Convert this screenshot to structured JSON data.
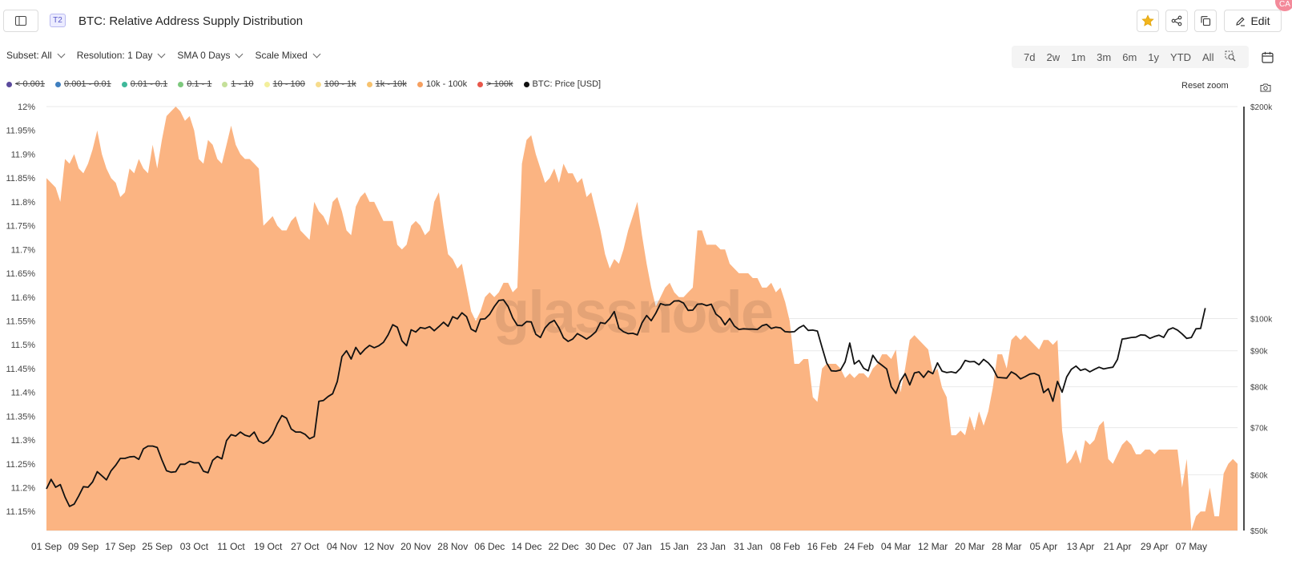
{
  "header": {
    "tier_badge": "T2",
    "title": "BTC: Relative Address Supply Distribution",
    "edit_label": "Edit",
    "avatar_initials": "CA"
  },
  "filters": [
    {
      "label": "Subset: All"
    },
    {
      "label": "Resolution: 1 Day"
    },
    {
      "label": "SMA 0 Days"
    },
    {
      "label": "Scale Mixed"
    }
  ],
  "ranges": [
    "7d",
    "2w",
    "1m",
    "3m",
    "6m",
    "1y",
    "YTD",
    "All"
  ],
  "reset_zoom": "Reset zoom",
  "legend": [
    {
      "label": "< 0.001",
      "color": "#5b4a9c",
      "active": false
    },
    {
      "label": "0.001 - 0.01",
      "color": "#3f7fbf",
      "active": false
    },
    {
      "label": "0.01 - 0.1",
      "color": "#3fb89a",
      "active": false
    },
    {
      "label": "0.1 - 1",
      "color": "#7dc87d",
      "active": false
    },
    {
      "label": "1 - 10",
      "color": "#c5e09a",
      "active": false
    },
    {
      "label": "10 - 100",
      "color": "#f3ef9c",
      "active": false
    },
    {
      "label": "100 - 1k",
      "color": "#f7dc8c",
      "active": false
    },
    {
      "label": "1k - 10k",
      "color": "#f7c26e",
      "active": false
    },
    {
      "label": "10k - 100k",
      "color": "#f6a060",
      "active": true
    },
    {
      "label": "> 100k",
      "color": "#e8574a",
      "active": false
    },
    {
      "label": "BTC: Price [USD]",
      "color": "#111111",
      "active": true
    }
  ],
  "watermark": "glassnode",
  "chart_data": {
    "type": "area",
    "title": "BTC: Relative Address Supply Distribution",
    "x_labels": [
      "01 Sep",
      "09 Sep",
      "17 Sep",
      "25 Sep",
      "03 Oct",
      "11 Oct",
      "19 Oct",
      "27 Oct",
      "04 Nov",
      "12 Nov",
      "20 Nov",
      "28 Nov",
      "06 Dec",
      "14 Dec",
      "22 Dec",
      "30 Dec",
      "07 Jan",
      "15 Jan",
      "23 Jan",
      "31 Jan",
      "08 Feb",
      "16 Feb",
      "24 Feb",
      "04 Mar",
      "12 Mar",
      "20 Mar",
      "28 Mar",
      "05 Apr",
      "13 Apr",
      "21 Apr",
      "29 Apr",
      "07 May"
    ],
    "y_left": {
      "ticks": [
        "12%",
        "11.95%",
        "11.9%",
        "11.85%",
        "11.8%",
        "11.75%",
        "11.7%",
        "11.65%",
        "11.6%",
        "11.55%",
        "11.5%",
        "11.45%",
        "11.4%",
        "11.35%",
        "11.3%",
        "11.25%",
        "11.2%",
        "11.15%"
      ],
      "range": [
        11.11,
        12.0
      ]
    },
    "y_right": {
      "ticks": [
        "$200k",
        "$100k",
        "$90k",
        "$80k",
        "$70k",
        "$60k",
        "$50k"
      ],
      "tick_values": [
        200000,
        100000,
        90000,
        80000,
        70000,
        60000,
        50000
      ],
      "scale": "log",
      "range": [
        50000,
        200000
      ]
    },
    "series": [
      {
        "name": "10k - 100k",
        "color": "#fbb482",
        "unit": "%",
        "values": [
          11.85,
          11.84,
          11.83,
          11.8,
          11.89,
          11.88,
          11.9,
          11.87,
          11.86,
          11.88,
          11.91,
          11.95,
          11.9,
          11.87,
          11.85,
          11.84,
          11.81,
          11.82,
          11.87,
          11.86,
          11.89,
          11.87,
          11.86,
          11.92,
          11.87,
          11.93,
          11.98,
          11.99,
          12.0,
          11.99,
          11.97,
          11.98,
          11.95,
          11.89,
          11.88,
          11.93,
          11.92,
          11.89,
          11.88,
          11.92,
          11.96,
          11.92,
          11.9,
          11.89,
          11.89,
          11.88,
          11.87,
          11.75,
          11.76,
          11.77,
          11.75,
          11.74,
          11.74,
          11.76,
          11.77,
          11.74,
          11.73,
          11.72,
          11.8,
          11.78,
          11.77,
          11.75,
          11.8,
          11.81,
          11.78,
          11.74,
          11.73,
          11.79,
          11.81,
          11.82,
          11.8,
          11.8,
          11.78,
          11.76,
          11.76,
          11.76,
          11.71,
          11.7,
          11.71,
          11.75,
          11.76,
          11.75,
          11.73,
          11.74,
          11.8,
          11.82,
          11.75,
          11.69,
          11.68,
          11.66,
          11.67,
          11.62,
          11.57,
          11.55,
          11.57,
          11.6,
          11.61,
          11.6,
          11.61,
          11.63,
          11.63,
          11.61,
          11.62,
          11.88,
          11.93,
          11.94,
          11.9,
          11.87,
          11.84,
          11.85,
          11.87,
          11.84,
          11.88,
          11.86,
          11.86,
          11.84,
          11.85,
          11.81,
          11.82,
          11.78,
          11.74,
          11.69,
          11.66,
          11.68,
          11.67,
          11.7,
          11.74,
          11.77,
          11.8,
          11.73,
          11.67,
          11.62,
          11.58,
          11.6,
          11.62,
          11.63,
          11.61,
          11.6,
          11.6,
          11.61,
          11.62,
          11.74,
          11.74,
          11.71,
          11.71,
          11.71,
          11.7,
          11.7,
          11.67,
          11.66,
          11.65,
          11.65,
          11.65,
          11.64,
          11.64,
          11.62,
          11.62,
          11.63,
          11.61,
          11.62,
          11.59,
          11.55,
          11.46,
          11.46,
          11.47,
          11.47,
          11.39,
          11.38,
          11.45,
          11.46,
          11.46,
          11.46,
          11.45,
          11.43,
          11.44,
          11.43,
          11.44,
          11.44,
          11.43,
          11.45,
          11.46,
          11.48,
          11.48,
          11.47,
          11.49,
          11.4,
          11.45,
          11.51,
          11.52,
          11.51,
          11.5,
          11.49,
          11.44,
          11.45,
          11.41,
          11.39,
          11.31,
          11.31,
          11.32,
          11.31,
          11.35,
          11.32,
          11.36,
          11.33,
          11.36,
          11.41,
          11.48,
          11.48,
          11.45,
          11.51,
          11.52,
          11.51,
          11.52,
          11.51,
          11.5,
          11.49,
          11.51,
          11.51,
          11.5,
          11.51,
          11.32,
          11.25,
          11.26,
          11.28,
          11.25,
          11.3,
          11.29,
          11.3,
          11.33,
          11.34,
          11.26,
          11.25,
          11.27,
          11.29,
          11.3,
          11.29,
          11.27,
          11.27,
          11.28,
          11.28,
          11.27,
          11.28,
          11.28,
          11.28,
          11.28,
          11.28,
          11.2,
          11.26,
          11.11,
          11.14,
          11.15,
          11.15,
          11.2,
          11.14,
          11.14,
          11.23,
          11.25,
          11.26,
          11.25
        ]
      },
      {
        "name": "BTC: Price [USD]",
        "color": "#111111",
        "unit": "USD",
        "values": [
          57300,
          59100,
          57600,
          58100,
          55800,
          54100,
          54500,
          56000,
          57700,
          57600,
          58600,
          60600,
          59800,
          59000,
          60800,
          61900,
          63300,
          63300,
          63600,
          63700,
          63100,
          65300,
          65900,
          65900,
          65600,
          63000,
          60800,
          60500,
          60600,
          62100,
          62100,
          62700,
          62400,
          62400,
          60700,
          60400,
          62900,
          63700,
          63200,
          67100,
          68400,
          68100,
          69000,
          68300,
          68000,
          69000,
          67000,
          66500,
          67100,
          68500,
          70900,
          72800,
          72200,
          69700,
          69000,
          69000,
          68500,
          67500,
          68000,
          76300,
          76500,
          77500,
          78200,
          81400,
          88300,
          90000,
          87600,
          91000,
          89000,
          90500,
          91600,
          90900,
          91500,
          92500,
          94800,
          98000,
          97200,
          93000,
          91500,
          96400,
          95700,
          97100,
          96800,
          97400,
          96100,
          97400,
          98800,
          97500,
          100600,
          99900,
          101900,
          100600,
          96600,
          95800,
          99800,
          99900,
          101400,
          104000,
          106100,
          106300,
          104000,
          100200,
          97800,
          97700,
          99000,
          98900,
          95000,
          94000,
          97000,
          98600,
          99400,
          97000,
          93900,
          92800,
          93500,
          95200,
          94400,
          93500,
          94500,
          95800,
          98700,
          98400,
          100000,
          102300,
          96900,
          95800,
          95200,
          95300,
          94800,
          98600,
          101000,
          99300,
          101800,
          105000,
          104500,
          104600,
          105900,
          106000,
          105200,
          102700,
          102800,
          104800,
          104900,
          104300,
          104800,
          101500,
          100300,
          98000,
          100000,
          97600,
          96500,
          96700,
          96600,
          96600,
          96500,
          97700,
          98100,
          96800,
          97200,
          97000,
          95800,
          95700,
          95800,
          97000,
          97800,
          96200,
          96300,
          96000,
          91000,
          86500,
          84300,
          84200,
          84500,
          86800,
          92300,
          86200,
          87200,
          85000,
          84300,
          88700,
          86800,
          85800,
          84800,
          80000,
          78300,
          81600,
          83500,
          80500,
          83700,
          84000,
          82500,
          84200,
          83500,
          86500,
          84200,
          83800,
          84000,
          83700,
          85000,
          87200,
          86800,
          86900,
          86000,
          87500,
          86500,
          85000,
          82500,
          82400,
          82300,
          84000,
          83300,
          82100,
          82700,
          83400,
          83600,
          83000,
          78500,
          79500,
          76300,
          81400,
          78600,
          82600,
          84700,
          85600,
          84400,
          84800,
          84000,
          84700,
          85300,
          84800,
          85100,
          85300,
          87500,
          93500,
          93700,
          94000,
          94100,
          94800,
          94700,
          93700,
          94300,
          94700,
          94000,
          96400,
          97000,
          96300,
          95100,
          93700,
          94000,
          96700,
          96800,
          103500
        ]
      }
    ]
  }
}
